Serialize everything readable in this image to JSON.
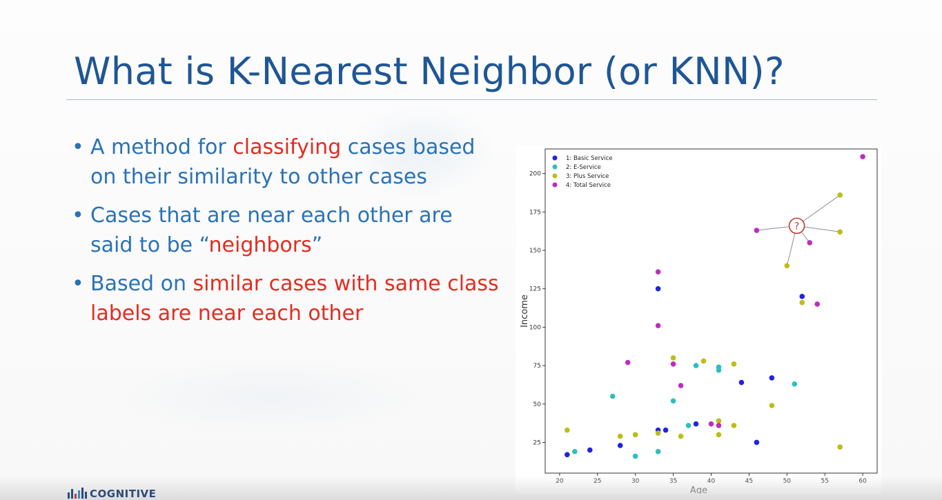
{
  "slide": {
    "title": "What is K-Nearest Neighbor (or KNN)?",
    "bullets": [
      {
        "parts": [
          {
            "text": "A method for ",
            "highlight": false
          },
          {
            "text": "classifying",
            "highlight": true
          },
          {
            "text": " cases based on their similarity to other cases",
            "highlight": false
          }
        ]
      },
      {
        "parts": [
          {
            "text": "Cases that are near each other are said to be “",
            "highlight": false
          },
          {
            "text": "neighbors",
            "highlight": true
          },
          {
            "text": "”",
            "highlight": false
          }
        ]
      },
      {
        "parts": [
          {
            "text": "Based on ",
            "highlight": false
          },
          {
            "text": "similar cases with same class labels are near each other",
            "highlight": true
          }
        ]
      }
    ],
    "footer_logo": "COGNITIVE"
  },
  "colors": {
    "title": "#1f5694",
    "body_text": "#2a72b6",
    "highlight": "#e52b20"
  },
  "chart_data": {
    "type": "scatter",
    "title": "",
    "xlabel": "Age",
    "ylabel": "Income",
    "xlim": [
      18.1,
      61.9
    ],
    "ylim": [
      5,
      216
    ],
    "x_ticks": [
      20,
      25,
      30,
      35,
      40,
      45,
      50,
      55,
      60
    ],
    "y_ticks": [
      25,
      50,
      75,
      100,
      125,
      150,
      175,
      200
    ],
    "grid": false,
    "legend_position": "top-left",
    "series": [
      {
        "name": "1: Basic Service",
        "color": "#2222e0",
        "points": [
          [
            21,
            17
          ],
          [
            24,
            20
          ],
          [
            28,
            23
          ],
          [
            33,
            125
          ],
          [
            33,
            33
          ],
          [
            34,
            33
          ],
          [
            38,
            37
          ],
          [
            44,
            64
          ],
          [
            46,
            25
          ],
          [
            48,
            67
          ],
          [
            52,
            120
          ]
        ]
      },
      {
        "name": "2: E-Service",
        "color": "#2cbfbf",
        "points": [
          [
            22,
            19
          ],
          [
            27,
            55
          ],
          [
            30,
            16
          ],
          [
            33,
            19
          ],
          [
            35,
            52
          ],
          [
            37,
            36
          ],
          [
            38,
            75
          ],
          [
            41,
            74
          ],
          [
            41,
            72
          ],
          [
            51,
            63
          ]
        ]
      },
      {
        "name": "3: Plus Service",
        "color": "#bdbd17",
        "points": [
          [
            21,
            33
          ],
          [
            28,
            29
          ],
          [
            30,
            30
          ],
          [
            33,
            31
          ],
          [
            35,
            80
          ],
          [
            36,
            29
          ],
          [
            39,
            78
          ],
          [
            41,
            39
          ],
          [
            41,
            30
          ],
          [
            43,
            76
          ],
          [
            43,
            36
          ],
          [
            48,
            49
          ],
          [
            50,
            140
          ],
          [
            52,
            116
          ],
          [
            57,
            186
          ],
          [
            57,
            162
          ],
          [
            57,
            22
          ]
        ]
      },
      {
        "name": "4: Total Service",
        "color": "#bf2cbf",
        "points": [
          [
            29,
            77
          ],
          [
            33,
            136
          ],
          [
            33,
            101
          ],
          [
            35,
            76
          ],
          [
            36,
            62
          ],
          [
            40,
            37
          ],
          [
            41,
            36
          ],
          [
            46,
            163
          ],
          [
            53,
            155
          ],
          [
            54,
            115
          ],
          [
            60,
            211
          ]
        ]
      }
    ],
    "query_point": {
      "label": "?",
      "x": 51.3,
      "y": 166,
      "neighbors": [
        [
          57,
          186
        ],
        [
          57,
          162
        ],
        [
          53,
          155
        ],
        [
          46,
          163
        ],
        [
          50,
          140
        ]
      ]
    }
  }
}
